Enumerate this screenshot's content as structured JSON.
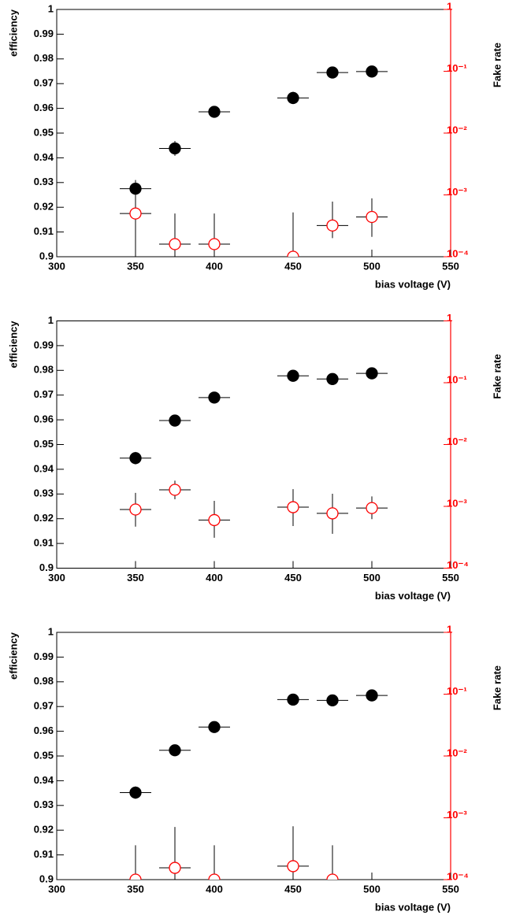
{
  "chart_data": [
    {
      "type": "scatter",
      "xlabel": "bias voltage (V)",
      "ylabel": "efficiency",
      "y2label": "Fake rate",
      "x": [
        350,
        375,
        400,
        450,
        475,
        500
      ],
      "xlim": [
        300,
        550
      ],
      "xticks": [
        300,
        350,
        400,
        450,
        500,
        550
      ],
      "ylim": [
        0.9,
        1
      ],
      "yticks": [
        0.9,
        0.91,
        0.92,
        0.93,
        0.94,
        0.95,
        0.96,
        0.97,
        0.98,
        0.99,
        1
      ],
      "y2lim": [
        0.0001,
        1
      ],
      "y2log": true,
      "y2ticks": [
        {
          "value": 0.0001,
          "label": "10⁻⁴"
        },
        {
          "value": 0.001,
          "label": "10⁻³"
        },
        {
          "value": 0.01,
          "label": "10⁻²"
        },
        {
          "value": 0.1,
          "label": "10⁻¹"
        },
        1
      ],
      "y2color": "#ff0000",
      "series": [
        {
          "color": "#000000",
          "marker": "filled",
          "values": [
            0.9275,
            0.9438,
            0.9586,
            0.9642,
            0.9745,
            0.9749
          ],
          "errors": [
            0.0035,
            0.003,
            0.0018,
            0.0025,
            0.0012,
            0.0012
          ],
          "x_errors": [
            10,
            10,
            10,
            10,
            10,
            10
          ]
        },
        {
          "color": "#ff0000",
          "marker": "open",
          "axis": "y2",
          "values": [
            0.0005,
            0.00016,
            0.00016,
            0.0001,
            0.00032,
            0.00044
          ],
          "errors_low": [
            0.0005,
            0.00016,
            0.00016,
            0.0001,
            0.00012,
            0.00023
          ],
          "errors_high": [
            0.0011,
            0.00034,
            0.00034,
            0.00042,
            0.00046,
            0.00044
          ],
          "x_errors": [
            10,
            10,
            10,
            10,
            10,
            10
          ]
        }
      ]
    },
    {
      "type": "scatter",
      "xlabel": "bias voltage (V)",
      "ylabel": "efficiency",
      "y2label": "Fake rate",
      "x": [
        350,
        375,
        400,
        450,
        475,
        500
      ],
      "xlim": [
        300,
        550
      ],
      "xticks": [
        300,
        350,
        400,
        450,
        500,
        550
      ],
      "ylim": [
        0.9,
        1
      ],
      "yticks": [
        0.9,
        0.91,
        0.92,
        0.93,
        0.94,
        0.95,
        0.96,
        0.97,
        0.98,
        0.99,
        1
      ],
      "y2lim": [
        0.0001,
        1
      ],
      "y2log": true,
      "y2ticks": [
        {
          "value": 0.0001,
          "label": "10⁻⁴"
        },
        {
          "value": 0.001,
          "label": "10⁻³"
        },
        {
          "value": 0.01,
          "label": "10⁻²"
        },
        {
          "value": 0.1,
          "label": "10⁻¹"
        },
        1
      ],
      "y2color": "#ff0000",
      "series": [
        {
          "color": "#000000",
          "marker": "filled",
          "values": [
            0.9445,
            0.9597,
            0.969,
            0.9778,
            0.9765,
            0.9788
          ],
          "errors": [
            0.0025,
            0.0018,
            0.0012,
            0.0012,
            0.0012,
            0.0012
          ],
          "x_errors": [
            10,
            10,
            10,
            10,
            10,
            10
          ]
        },
        {
          "color": "#ff0000",
          "marker": "open",
          "axis": "y2",
          "values": [
            0.00089,
            0.00185,
            0.0006,
            0.00097,
            0.00077,
            0.00094
          ],
          "errors_low": [
            0.00042,
            0.00055,
            0.00029,
            0.00049,
            0.00041,
            0.00032
          ],
          "errors_high": [
            0.00076,
            0.00075,
            0.00063,
            0.00093,
            0.00083,
            0.00051
          ],
          "x_errors": [
            10,
            10,
            10,
            10,
            10,
            10
          ]
        }
      ]
    },
    {
      "type": "scatter",
      "xlabel": "bias voltage (V)",
      "ylabel": "efficiency",
      "y2label": "Fake rate",
      "x": [
        350,
        375,
        400,
        450,
        475,
        500
      ],
      "xlim": [
        300,
        550
      ],
      "xticks": [
        300,
        350,
        400,
        450,
        500,
        550
      ],
      "ylim": [
        0.9,
        1
      ],
      "yticks": [
        0.9,
        0.91,
        0.92,
        0.93,
        0.94,
        0.95,
        0.96,
        0.97,
        0.98,
        0.99,
        1
      ],
      "y2lim": [
        0.0001,
        1
      ],
      "y2log": true,
      "y2ticks": [
        {
          "value": 0.0001,
          "label": "10⁻⁴"
        },
        {
          "value": 0.001,
          "label": "10⁻³"
        },
        {
          "value": 0.01,
          "label": "10⁻²"
        },
        {
          "value": 0.1,
          "label": "10⁻¹"
        },
        1
      ],
      "y2color": "#ff0000",
      "series": [
        {
          "color": "#000000",
          "marker": "filled",
          "values": [
            0.9352,
            0.9523,
            0.9617,
            0.9728,
            0.9725,
            0.9745
          ],
          "errors": [
            0.0025,
            0.0022,
            0.0015,
            0.0012,
            0.0012,
            0.0012
          ],
          "x_errors": [
            10,
            10,
            10,
            10,
            10,
            10
          ]
        },
        {
          "color": "#ff0000",
          "marker": "open",
          "axis": "y2",
          "values": [
            0.0001,
            0.000155,
            0.0001,
            0.000165,
            0.0001,
            null
          ],
          "errors_low": [
            0.0001,
            0.000155,
            0.0001,
            0.000165,
            0.0001,
            null
          ],
          "errors_high": [
            0.00026,
            0.000555,
            0.00026,
            0.000565,
            0.00026,
            null
          ],
          "x_errors": [
            10,
            10,
            10,
            10,
            10,
            10
          ]
        }
      ]
    }
  ]
}
